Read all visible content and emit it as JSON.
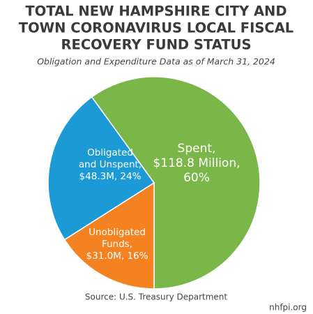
{
  "chart_data": {
    "type": "pie",
    "title": [
      "TOTAL NEW HAMPSHIRE CITY AND",
      "TOWN CORONAVIRUS LOCAL FISCAL",
      "RECOVERY FUND STATUS"
    ],
    "subtitle": "Obligation and Expenditure Data as of March 31, 2024",
    "categories": [
      "Spent",
      "Unobligated Funds",
      "Obligated and Unspent"
    ],
    "values": [
      60,
      16,
      24
    ],
    "value_labels": [
      [
        "Spent,",
        "$118.8 Million,",
        "60%"
      ],
      [
        "Unobligated",
        "Funds,",
        "$31.0M, 16%"
      ],
      [
        "Obligated",
        "and Unspent,",
        "$48.3M, 24%"
      ]
    ],
    "colors": [
      "#7ab648",
      "#f58220",
      "#1b9ad6"
    ],
    "source": "Source: U.S. Treasury Department",
    "credit": "nhfpi.org"
  }
}
